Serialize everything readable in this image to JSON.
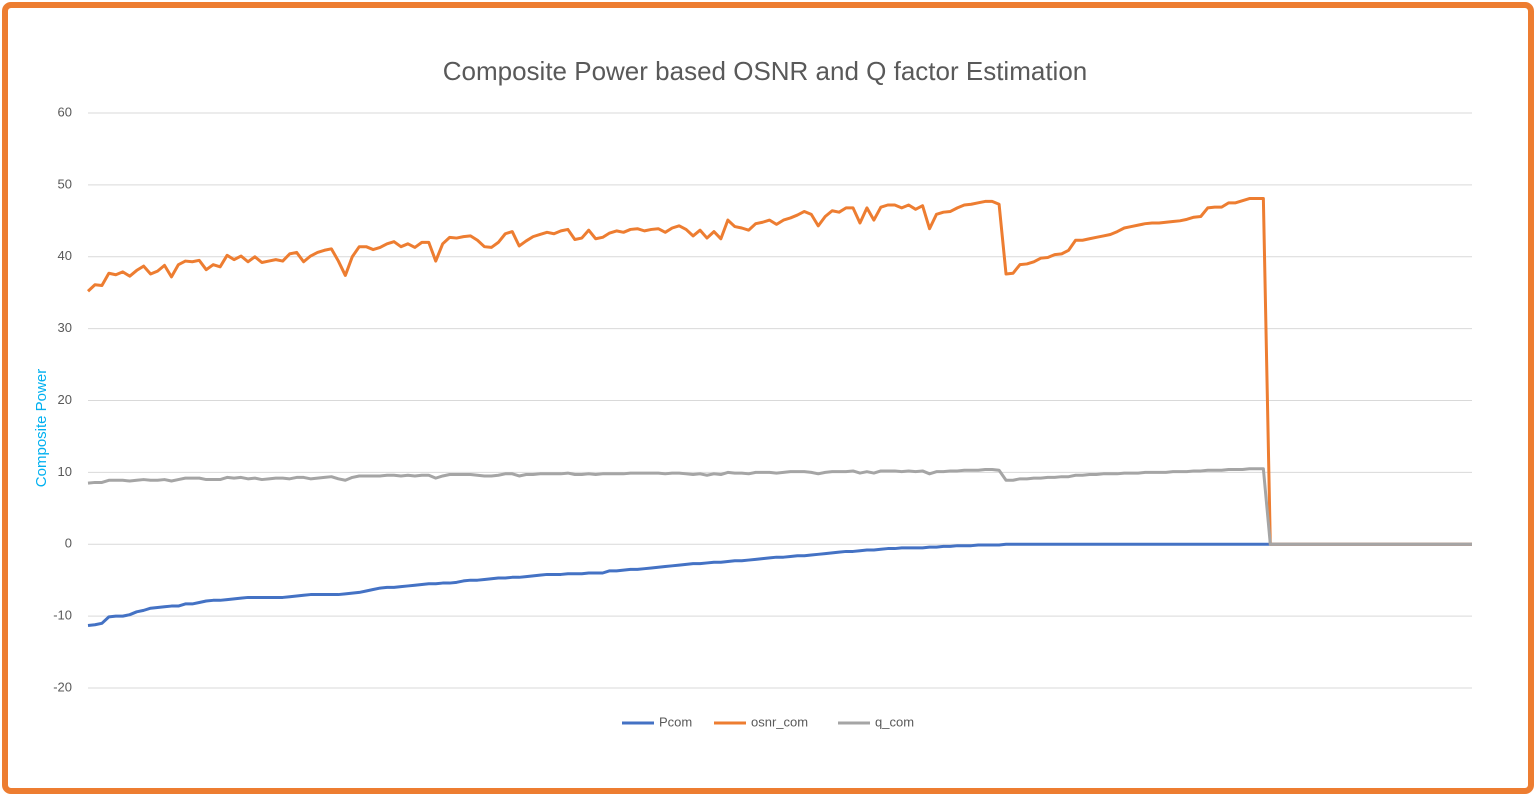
{
  "chart_data": {
    "type": "line",
    "title": "Composite Power based OSNR and Q factor Estimation",
    "y_label": "Composite Power",
    "ylim": [
      -20,
      60
    ],
    "yticks": [
      -20,
      -10,
      0,
      10,
      20,
      30,
      40,
      50,
      60
    ],
    "grid": true,
    "legend": "bottom",
    "series": [
      {
        "name": "Pcom",
        "color": "#4472c4",
        "values": [
          -11.3,
          -11.2,
          -11.0,
          -10.1,
          -10.0,
          -10.0,
          -9.8,
          -9.4,
          -9.2,
          -8.9,
          -8.8,
          -8.7,
          -8.6,
          -8.6,
          -8.3,
          -8.3,
          -8.1,
          -7.9,
          -7.8,
          -7.8,
          -7.7,
          -7.6,
          -7.5,
          -7.4,
          -7.4,
          -7.4,
          -7.4,
          -7.4,
          -7.4,
          -7.3,
          -7.2,
          -7.1,
          -7.0,
          -7.0,
          -7.0,
          -7.0,
          -7.0,
          -6.9,
          -6.8,
          -6.7,
          -6.5,
          -6.3,
          -6.1,
          -6.0,
          -6.0,
          -5.9,
          -5.8,
          -5.7,
          -5.6,
          -5.5,
          -5.5,
          -5.4,
          -5.4,
          -5.3,
          -5.1,
          -5.0,
          -5.0,
          -4.9,
          -4.8,
          -4.7,
          -4.7,
          -4.6,
          -4.6,
          -4.5,
          -4.4,
          -4.3,
          -4.2,
          -4.2,
          -4.2,
          -4.1,
          -4.1,
          -4.1,
          -4.0,
          -4.0,
          -4.0,
          -3.7,
          -3.7,
          -3.6,
          -3.5,
          -3.5,
          -3.4,
          -3.3,
          -3.2,
          -3.1,
          -3.0,
          -2.9,
          -2.8,
          -2.7,
          -2.7,
          -2.6,
          -2.5,
          -2.5,
          -2.4,
          -2.3,
          -2.3,
          -2.2,
          -2.1,
          -2.0,
          -1.9,
          -1.8,
          -1.8,
          -1.7,
          -1.6,
          -1.6,
          -1.5,
          -1.4,
          -1.3,
          -1.2,
          -1.1,
          -1.0,
          -1.0,
          -0.9,
          -0.8,
          -0.8,
          -0.7,
          -0.6,
          -0.6,
          -0.5,
          -0.5,
          -0.5,
          -0.5,
          -0.4,
          -0.4,
          -0.3,
          -0.3,
          -0.2,
          -0.2,
          -0.2,
          -0.1,
          -0.1,
          -0.1,
          -0.1,
          0,
          0,
          0,
          0,
          0,
          0,
          0,
          0,
          0,
          0,
          0,
          0,
          0,
          0,
          0,
          0,
          0,
          0,
          0,
          0,
          0,
          0,
          0,
          0,
          0,
          0,
          0,
          0,
          0,
          0,
          0,
          0,
          0,
          0,
          0,
          0,
          0,
          0,
          0,
          0,
          0,
          0,
          0,
          0,
          0,
          0,
          0,
          0,
          0,
          0,
          0,
          0,
          0,
          0,
          0,
          0,
          0,
          0,
          0,
          0,
          0,
          0,
          0,
          0,
          0,
          0,
          0,
          0
        ]
      },
      {
        "name": "osnr_com",
        "color": "#ed7d31",
        "values": [
          35.2,
          36.1,
          36.0,
          37.7,
          37.5,
          37.9,
          37.3,
          38.1,
          38.7,
          37.6,
          38.0,
          38.8,
          37.2,
          38.9,
          39.4,
          39.3,
          39.5,
          38.2,
          38.9,
          38.6,
          40.2,
          39.6,
          40.1,
          39.3,
          40.0,
          39.2,
          39.4,
          39.6,
          39.4,
          40.4,
          40.6,
          39.3,
          40.1,
          40.6,
          40.9,
          41.1,
          39.4,
          37.4,
          40.0,
          41.4,
          41.4,
          41.0,
          41.3,
          41.8,
          42.1,
          41.4,
          41.8,
          41.3,
          42.0,
          42.0,
          39.4,
          41.8,
          42.7,
          42.6,
          42.8,
          42.9,
          42.3,
          41.4,
          41.3,
          42.0,
          43.2,
          43.5,
          41.5,
          42.2,
          42.8,
          43.1,
          43.4,
          43.2,
          43.6,
          43.8,
          42.4,
          42.6,
          43.7,
          42.5,
          42.7,
          43.3,
          43.6,
          43.4,
          43.8,
          43.9,
          43.6,
          43.8,
          43.9,
          43.4,
          44.0,
          44.3,
          43.8,
          42.9,
          43.7,
          42.6,
          43.5,
          42.5,
          45.1,
          44.2,
          44.0,
          43.7,
          44.6,
          44.8,
          45.1,
          44.5,
          45.1,
          45.4,
          45.8,
          46.3,
          45.9,
          44.3,
          45.6,
          46.4,
          46.2,
          46.8,
          46.8,
          44.7,
          46.8,
          45.1,
          46.9,
          47.2,
          47.2,
          46.8,
          47.2,
          46.6,
          47.1,
          43.9,
          45.9,
          46.2,
          46.3,
          46.8,
          47.2,
          47.3,
          47.5,
          47.7,
          47.7,
          47.3,
          37.6,
          37.7,
          38.9,
          39.0,
          39.3,
          39.8,
          39.9,
          40.3,
          40.4,
          40.9,
          42.3,
          42.3,
          42.5,
          42.7,
          42.9,
          43.1,
          43.5,
          44.0,
          44.2,
          44.4,
          44.6,
          44.7,
          44.7,
          44.8,
          44.9,
          45.0,
          45.2,
          45.5,
          45.6,
          46.8,
          46.9,
          46.9,
          47.5,
          47.5,
          47.8,
          48.1,
          48.1,
          48.1,
          0,
          0,
          0,
          0,
          0,
          0,
          0,
          0,
          0,
          0,
          0,
          0,
          0,
          0,
          0,
          0,
          0,
          0,
          0,
          0,
          0,
          0,
          0,
          0,
          0,
          0,
          0,
          0,
          0,
          0
        ]
      },
      {
        "name": "q_com",
        "color": "#a5a5a5",
        "values": [
          8.5,
          8.6,
          8.6,
          8.9,
          8.9,
          8.9,
          8.8,
          8.9,
          9.0,
          8.9,
          8.9,
          9.0,
          8.8,
          9.0,
          9.2,
          9.2,
          9.2,
          9.0,
          9.0,
          9.0,
          9.3,
          9.2,
          9.3,
          9.1,
          9.2,
          9.0,
          9.1,
          9.2,
          9.2,
          9.1,
          9.3,
          9.3,
          9.1,
          9.2,
          9.3,
          9.4,
          9.1,
          8.9,
          9.3,
          9.5,
          9.5,
          9.5,
          9.5,
          9.6,
          9.6,
          9.5,
          9.6,
          9.5,
          9.6,
          9.6,
          9.2,
          9.5,
          9.7,
          9.7,
          9.7,
          9.7,
          9.6,
          9.5,
          9.5,
          9.6,
          9.8,
          9.8,
          9.5,
          9.7,
          9.7,
          9.8,
          9.8,
          9.8,
          9.8,
          9.9,
          9.7,
          9.7,
          9.8,
          9.7,
          9.8,
          9.8,
          9.8,
          9.8,
          9.9,
          9.9,
          9.9,
          9.9,
          9.9,
          9.8,
          9.9,
          9.9,
          9.8,
          9.7,
          9.8,
          9.6,
          9.8,
          9.7,
          10.0,
          9.9,
          9.9,
          9.8,
          10.0,
          10.0,
          10.0,
          9.9,
          10.0,
          10.1,
          10.1,
          10.1,
          10.0,
          9.8,
          10.0,
          10.1,
          10.1,
          10.1,
          10.2,
          9.9,
          10.1,
          9.9,
          10.2,
          10.2,
          10.2,
          10.1,
          10.2,
          10.1,
          10.2,
          9.8,
          10.1,
          10.1,
          10.2,
          10.2,
          10.3,
          10.3,
          10.3,
          10.4,
          10.4,
          10.3,
          8.9,
          8.9,
          9.1,
          9.1,
          9.2,
          9.2,
          9.3,
          9.3,
          9.4,
          9.4,
          9.6,
          9.6,
          9.7,
          9.7,
          9.8,
          9.8,
          9.8,
          9.9,
          9.9,
          9.9,
          10.0,
          10.0,
          10.0,
          10.0,
          10.1,
          10.1,
          10.1,
          10.2,
          10.2,
          10.3,
          10.3,
          10.3,
          10.4,
          10.4,
          10.4,
          10.5,
          10.5,
          10.5,
          0,
          0,
          0,
          0,
          0,
          0,
          0,
          0,
          0,
          0,
          0,
          0,
          0,
          0,
          0,
          0,
          0,
          0,
          0,
          0,
          0,
          0,
          0,
          0,
          0,
          0,
          0,
          0,
          0,
          0
        ]
      }
    ]
  }
}
